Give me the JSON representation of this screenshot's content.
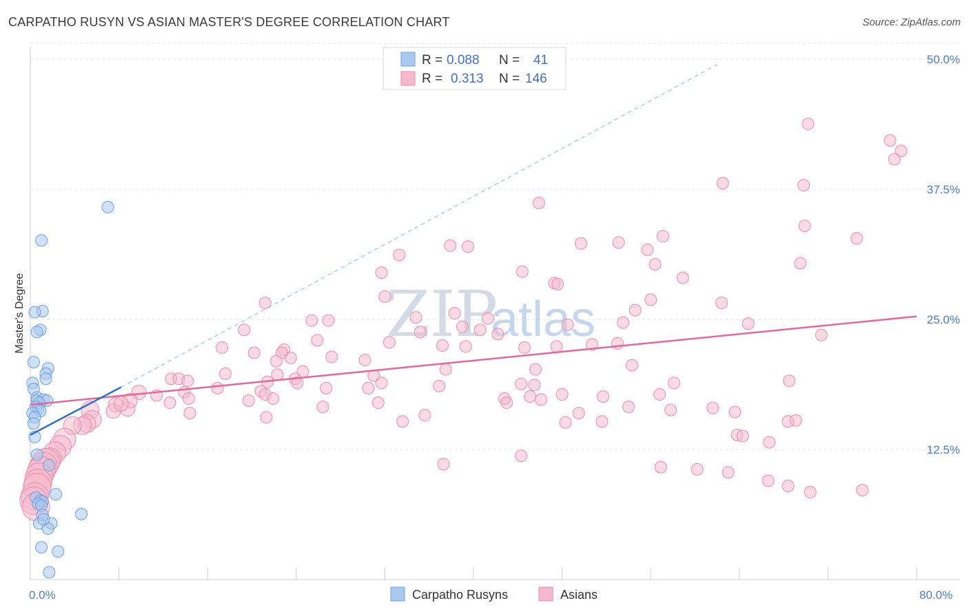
{
  "title": "CARPATHO RUSYN VS ASIAN MASTER'S DEGREE CORRELATION CHART",
  "source": "Source: ZipAtlas.com",
  "watermark": {
    "zip": "ZIP",
    "atlas": "atlas"
  },
  "colors": {
    "rusyn_fill": "#a9c8f0",
    "rusyn_stroke": "#6d9fe0",
    "rusyn_line": "#2f6fca",
    "asian_fill": "#f6b8cb",
    "asian_stroke": "#ee8aa9",
    "asian_line": "#e5679a",
    "tick": "#4a7cc9"
  },
  "legend": {
    "rows": [
      {
        "r_label": "R =",
        "r_value": "0.088",
        "n_label": "N =",
        "n_value": "41"
      },
      {
        "r_label": "R =",
        "r_value": "0.313",
        "n_label": "N =",
        "n_value": "146"
      }
    ]
  },
  "bottom_legend": {
    "rusyn": "Carpatho Rusyns",
    "asian": "Asians"
  },
  "chart_data": {
    "type": "scatter",
    "title": "CARPATHO RUSYN VS ASIAN MASTER'S DEGREE CORRELATION CHART",
    "xlabel": "",
    "ylabel": "Master's Degree",
    "xlim": [
      0,
      80
    ],
    "ylim": [
      0,
      52
    ],
    "x_tick_labels": [
      "0.0%",
      "80.0%"
    ],
    "y_ticks": [
      12.5,
      25.0,
      37.5,
      50.0
    ],
    "y_tick_labels": [
      "12.5%",
      "25.0%",
      "37.5%",
      "50.0%"
    ],
    "grid": true,
    "series": [
      {
        "name": "Carpatho Rusyns",
        "r": 0.088,
        "n": 41,
        "trend": {
          "x": [
            0,
            8.2
          ],
          "y": [
            13.9,
            18.5
          ]
        },
        "trend_dashed": {
          "x": [
            8.2,
            62
          ],
          "y": [
            18.5,
            49.5
          ]
        },
        "points": [
          [
            7.0,
            35.8
          ],
          [
            1.0,
            32.6
          ],
          [
            1.1,
            25.8
          ],
          [
            0.4,
            25.7
          ],
          [
            0.9,
            24.0
          ],
          [
            0.6,
            23.8
          ],
          [
            0.3,
            20.9
          ],
          [
            1.6,
            20.3
          ],
          [
            1.4,
            19.8
          ],
          [
            1.4,
            19.3
          ],
          [
            0.2,
            18.9
          ],
          [
            0.3,
            18.3
          ],
          [
            0.6,
            17.5
          ],
          [
            0.6,
            17.2
          ],
          [
            1.2,
            17.3
          ],
          [
            1.5,
            17.2
          ],
          [
            0.8,
            17.0
          ],
          [
            0.5,
            16.6
          ],
          [
            0.7,
            16.4
          ],
          [
            0.9,
            16.2
          ],
          [
            0.2,
            16.0
          ],
          [
            0.4,
            15.6
          ],
          [
            0.3,
            15.0
          ],
          [
            0.4,
            13.7
          ],
          [
            0.6,
            12.0
          ],
          [
            1.7,
            11.0
          ],
          [
            2.3,
            8.2
          ],
          [
            0.5,
            7.9
          ],
          [
            0.9,
            7.6
          ],
          [
            1.1,
            7.5
          ],
          [
            0.7,
            7.3
          ],
          [
            1.0,
            7.1
          ],
          [
            1.1,
            6.2
          ],
          [
            4.6,
            6.3
          ],
          [
            0.8,
            5.4
          ],
          [
            1.9,
            5.4
          ],
          [
            1.6,
            4.9
          ],
          [
            1.0,
            3.1
          ],
          [
            2.5,
            2.7
          ],
          [
            1.7,
            0.7
          ],
          [
            1.2,
            5.8
          ]
        ]
      },
      {
        "name": "Asians",
        "r": 0.313,
        "n": 146,
        "trend": {
          "x": [
            0,
            80
          ],
          "y": [
            16.8,
            25.3
          ]
        },
        "points": [
          [
            70.2,
            43.8
          ],
          [
            77.6,
            42.2
          ],
          [
            78.6,
            41.2
          ],
          [
            78.0,
            40.4
          ],
          [
            62.5,
            38.1
          ],
          [
            69.8,
            37.9
          ],
          [
            45.9,
            36.2
          ],
          [
            69.9,
            34.0
          ],
          [
            74.6,
            32.8
          ],
          [
            57.1,
            33.0
          ],
          [
            39.5,
            32.0
          ],
          [
            37.9,
            32.1
          ],
          [
            49.7,
            32.3
          ],
          [
            53.1,
            32.4
          ],
          [
            55.7,
            31.7
          ],
          [
            33.3,
            31.2
          ],
          [
            56.4,
            30.3
          ],
          [
            69.5,
            30.4
          ],
          [
            44.4,
            29.6
          ],
          [
            31.7,
            29.5
          ],
          [
            58.9,
            29.0
          ],
          [
            47.3,
            28.5
          ],
          [
            47.6,
            28.4
          ],
          [
            32.0,
            27.2
          ],
          [
            56.0,
            26.9
          ],
          [
            62.4,
            26.6
          ],
          [
            21.2,
            26.6
          ],
          [
            54.6,
            25.9
          ],
          [
            38.3,
            25.6
          ],
          [
            34.8,
            25.2
          ],
          [
            41.3,
            25.1
          ],
          [
            25.4,
            24.9
          ],
          [
            26.9,
            24.9
          ],
          [
            48.5,
            24.5
          ],
          [
            53.5,
            24.7
          ],
          [
            64.8,
            24.6
          ],
          [
            39.0,
            24.3
          ],
          [
            40.6,
            24.0
          ],
          [
            19.3,
            24.0
          ],
          [
            35.2,
            23.8
          ],
          [
            42.2,
            23.6
          ],
          [
            71.4,
            23.5
          ],
          [
            25.9,
            23.0
          ],
          [
            32.4,
            22.8
          ],
          [
            37.2,
            22.5
          ],
          [
            39.3,
            22.4
          ],
          [
            50.7,
            22.6
          ],
          [
            44.6,
            22.3
          ],
          [
            47.5,
            22.4
          ],
          [
            53.0,
            22.7
          ],
          [
            17.3,
            22.3
          ],
          [
            22.9,
            22.1
          ],
          [
            22.7,
            21.8
          ],
          [
            20.2,
            21.8
          ],
          [
            23.5,
            21.3
          ],
          [
            27.2,
            21.4
          ],
          [
            22.2,
            21.0
          ],
          [
            30.2,
            21.1
          ],
          [
            54.3,
            20.6
          ],
          [
            37.5,
            20.2
          ],
          [
            45.6,
            20.2
          ],
          [
            24.6,
            20.0
          ],
          [
            17.6,
            19.8
          ],
          [
            22.3,
            19.7
          ],
          [
            31.0,
            19.6
          ],
          [
            23.9,
            19.3
          ],
          [
            21.4,
            19.0
          ],
          [
            12.7,
            19.3
          ],
          [
            13.4,
            19.3
          ],
          [
            14.2,
            19.1
          ],
          [
            24.1,
            18.9
          ],
          [
            31.7,
            18.9
          ],
          [
            44.3,
            18.8
          ],
          [
            58.1,
            18.9
          ],
          [
            68.5,
            19.1
          ],
          [
            36.9,
            18.6
          ],
          [
            45.5,
            18.7
          ],
          [
            26.7,
            18.4
          ],
          [
            30.5,
            18.4
          ],
          [
            16.9,
            18.4
          ],
          [
            20.8,
            18.1
          ],
          [
            13.9,
            18.0
          ],
          [
            9.8,
            18.0
          ],
          [
            21.2,
            17.8
          ],
          [
            48.0,
            17.8
          ],
          [
            51.7,
            17.6
          ],
          [
            56.8,
            17.8
          ],
          [
            46.1,
            17.3
          ],
          [
            42.8,
            17.4
          ],
          [
            45.1,
            17.6
          ],
          [
            12.6,
            17.0
          ],
          [
            43.0,
            17.0
          ],
          [
            14.3,
            17.4
          ],
          [
            21.9,
            17.4
          ],
          [
            11.4,
            17.7
          ],
          [
            19.7,
            17.2
          ],
          [
            31.4,
            17.0
          ],
          [
            26.4,
            16.6
          ],
          [
            54.0,
            16.6
          ],
          [
            57.8,
            16.3
          ],
          [
            63.6,
            16.1
          ],
          [
            61.6,
            16.5
          ],
          [
            7.7,
            16.8
          ],
          [
            7.5,
            16.2
          ],
          [
            8.8,
            16.4
          ],
          [
            9.0,
            17.2
          ],
          [
            8.2,
            16.9
          ],
          [
            5.4,
            16.3
          ],
          [
            5.6,
            15.4
          ],
          [
            5.1,
            15.0
          ],
          [
            4.7,
            14.8
          ],
          [
            3.8,
            14.8
          ],
          [
            14.4,
            16.0
          ],
          [
            49.5,
            16.0
          ],
          [
            35.6,
            15.8
          ],
          [
            21.3,
            15.6
          ],
          [
            33.6,
            15.2
          ],
          [
            48.3,
            15.1
          ],
          [
            68.4,
            15.2
          ],
          [
            51.6,
            15.2
          ],
          [
            69.1,
            15.3
          ],
          [
            63.8,
            13.9
          ],
          [
            64.3,
            13.8
          ],
          [
            66.7,
            13.2
          ],
          [
            3.1,
            13.5
          ],
          [
            2.7,
            12.8
          ],
          [
            2.2,
            12.2
          ],
          [
            1.8,
            11.6
          ],
          [
            1.4,
            11.3
          ],
          [
            1.2,
            10.9
          ],
          [
            1.0,
            10.5
          ],
          [
            0.8,
            9.9
          ],
          [
            0.7,
            9.3
          ],
          [
            0.6,
            8.9
          ],
          [
            0.4,
            8.0
          ],
          [
            0.3,
            7.6
          ],
          [
            0.5,
            7.0
          ],
          [
            44.3,
            11.9
          ],
          [
            37.3,
            11.1
          ],
          [
            56.9,
            10.8
          ],
          [
            60.2,
            10.6
          ],
          [
            63.0,
            10.3
          ],
          [
            66.6,
            9.5
          ],
          [
            68.4,
            9.0
          ],
          [
            70.4,
            8.4
          ],
          [
            75.1,
            8.6
          ]
        ],
        "sizes_note": "points near x=0 drawn larger"
      }
    ]
  }
}
